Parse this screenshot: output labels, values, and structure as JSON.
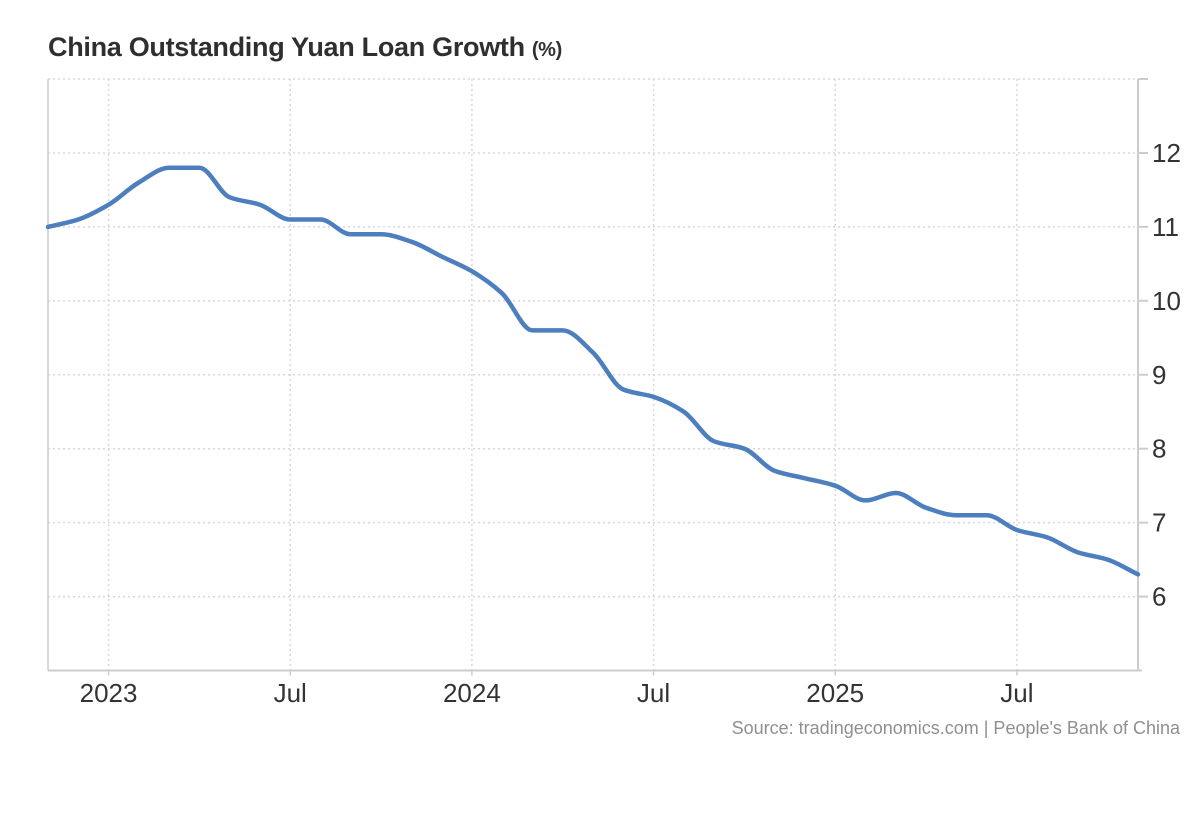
{
  "header": {
    "title": "China Outstanding Yuan Loan Growth",
    "unit": "(%)"
  },
  "footer": {
    "source": "Source: tradingeconomics.com | People's Bank of China"
  },
  "chart_data": {
    "type": "line",
    "title": "China Outstanding Yuan Loan Growth (%)",
    "xlabel": "",
    "ylabel": "",
    "x": [
      "Nov 2022",
      "Dec 2022",
      "Jan 2023",
      "Feb 2023",
      "Mar 2023",
      "Apr 2023",
      "May 2023",
      "Jun 2023",
      "Jul 2023",
      "Aug 2023",
      "Sep 2023",
      "Oct 2023",
      "Nov 2023",
      "Dec 2023",
      "Jan 2024",
      "Feb 2024",
      "Mar 2024",
      "Apr 2024",
      "May 2024",
      "Jun 2024",
      "Jul 2024",
      "Aug 2024",
      "Sep 2024",
      "Oct 2024",
      "Nov 2024",
      "Dec 2024",
      "Jan 2025",
      "Feb 2025",
      "Mar 2025",
      "Apr 2025",
      "May 2025",
      "Jun 2025",
      "Jul 2025",
      "Aug 2025",
      "Sep 2025",
      "Oct 2025",
      "Nov 2025"
    ],
    "series": [
      {
        "name": "Outstanding Yuan Loan Growth YoY (%)",
        "values": [
          11.0,
          11.1,
          11.3,
          11.6,
          11.8,
          11.8,
          11.4,
          11.3,
          11.1,
          11.1,
          10.9,
          10.9,
          10.8,
          10.6,
          10.4,
          10.1,
          9.6,
          9.6,
          9.3,
          8.8,
          8.7,
          8.5,
          8.1,
          8.0,
          7.7,
          7.6,
          7.5,
          7.3,
          7.4,
          7.2,
          7.1,
          7.1,
          6.9,
          6.8,
          6.6,
          6.5,
          6.3
        ]
      }
    ],
    "x_tick_labels": [
      {
        "label": "2023",
        "index": 2
      },
      {
        "label": "Jul",
        "index": 8
      },
      {
        "label": "2024",
        "index": 14
      },
      {
        "label": "Jul",
        "index": 20
      },
      {
        "label": "2025",
        "index": 26
      },
      {
        "label": "Jul",
        "index": 32
      }
    ],
    "y_ticks": [
      "6",
      "7",
      "8",
      "9",
      "10",
      "11",
      "12"
    ],
    "ylim": [
      5,
      13
    ],
    "grid": "dotted",
    "legend": "none",
    "colors": {
      "line": "#4d7fbf",
      "grid": "#d8d8d8",
      "axis": "#cccccc",
      "tick_text": "#333333",
      "title_text": "#2f2f2f",
      "source_text": "#8f8f8f",
      "background": "#ffffff"
    }
  }
}
